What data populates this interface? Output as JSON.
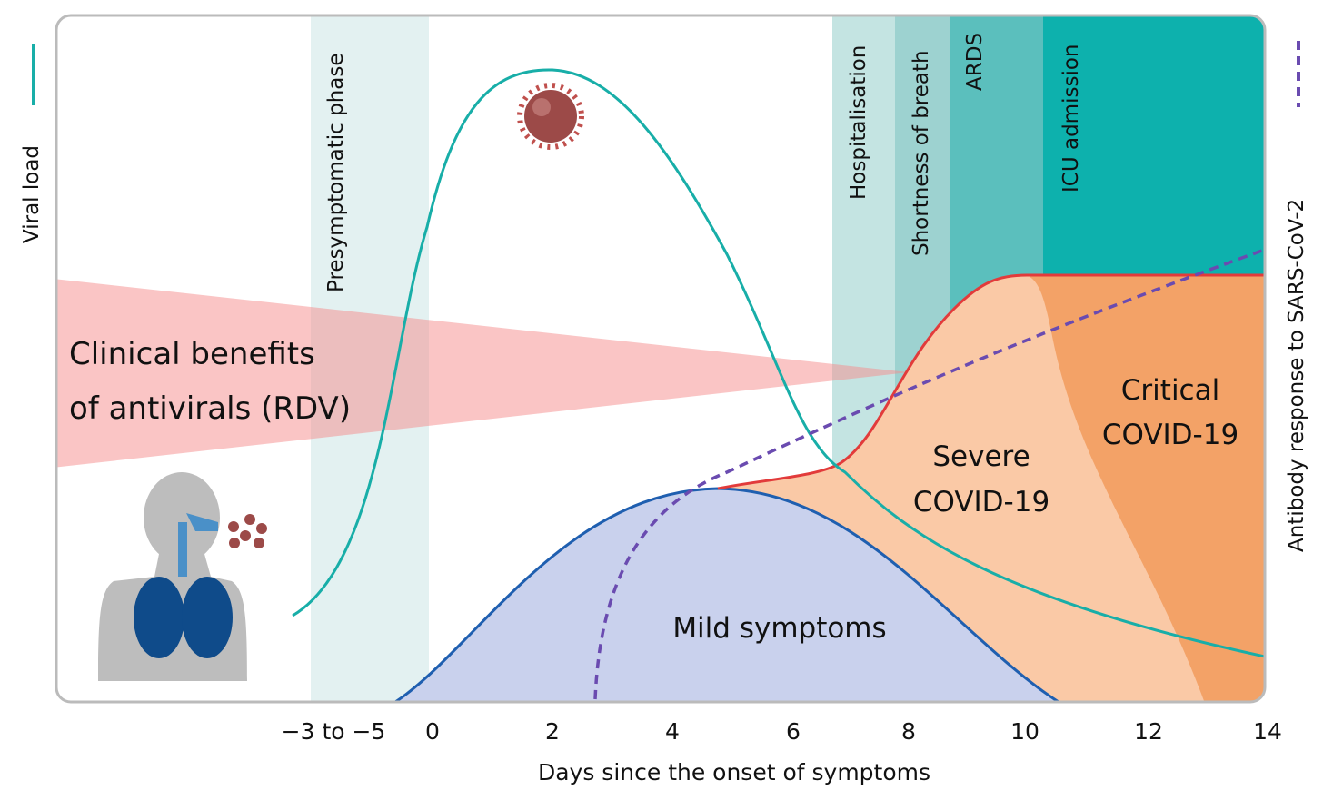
{
  "y_axis_left": "Viral load",
  "y_axis_right": "Antibody response to SARS-CoV-2",
  "phases": [
    "Presymptomatic phase",
    "Hospitalisation",
    "Shortness of breath",
    "ARDS",
    "ICU admission"
  ],
  "callout": {
    "lines": [
      "Clinical benefits",
      "of antivirals (RDV)"
    ]
  },
  "stages": {
    "mild": "Mild symptoms",
    "severe": [
      "Severe",
      "COVID-19"
    ],
    "critical": [
      "Critical",
      "COVID-19"
    ]
  },
  "x_axis": {
    "title": "Days since the onset of symptoms",
    "ticks": [
      "−3 to −5",
      "0",
      "2",
      "4",
      "6",
      "8",
      "10",
      "12",
      "14"
    ]
  }
}
